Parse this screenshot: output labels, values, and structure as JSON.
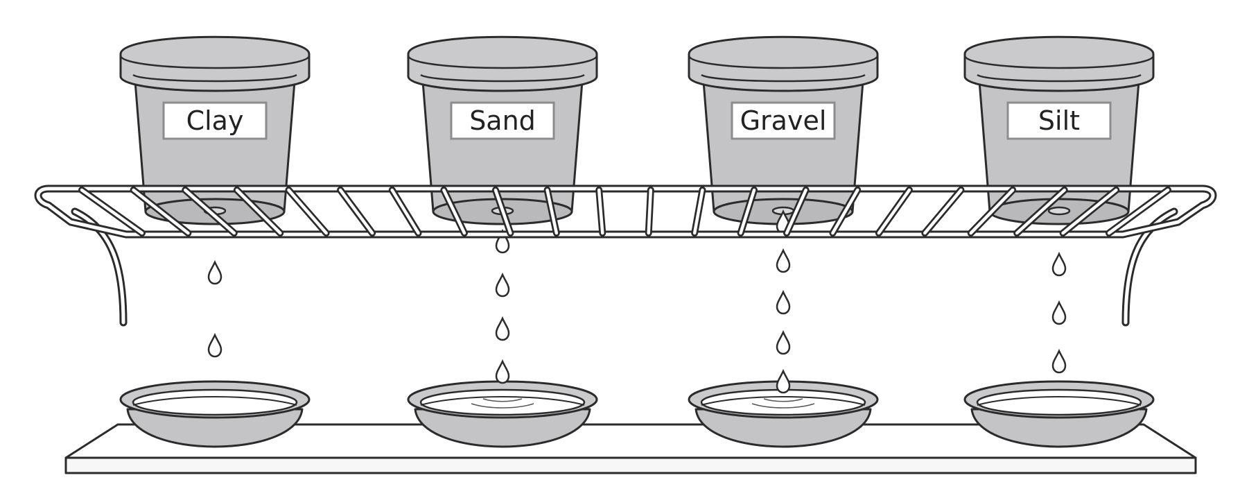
{
  "pots": [
    {
      "label": "Clay"
    },
    {
      "label": "Sand"
    },
    {
      "label": "Gravel"
    },
    {
      "label": "Silt"
    }
  ],
  "colors": {
    "pot_fill": "#c4c4c6",
    "pot_rim": "#cacacc",
    "outline": "#2b2b2b",
    "water": "#ffffff",
    "tray": "#f7f7f7",
    "label_bg": "#ffffff",
    "label_border": "#8c8c8c"
  }
}
